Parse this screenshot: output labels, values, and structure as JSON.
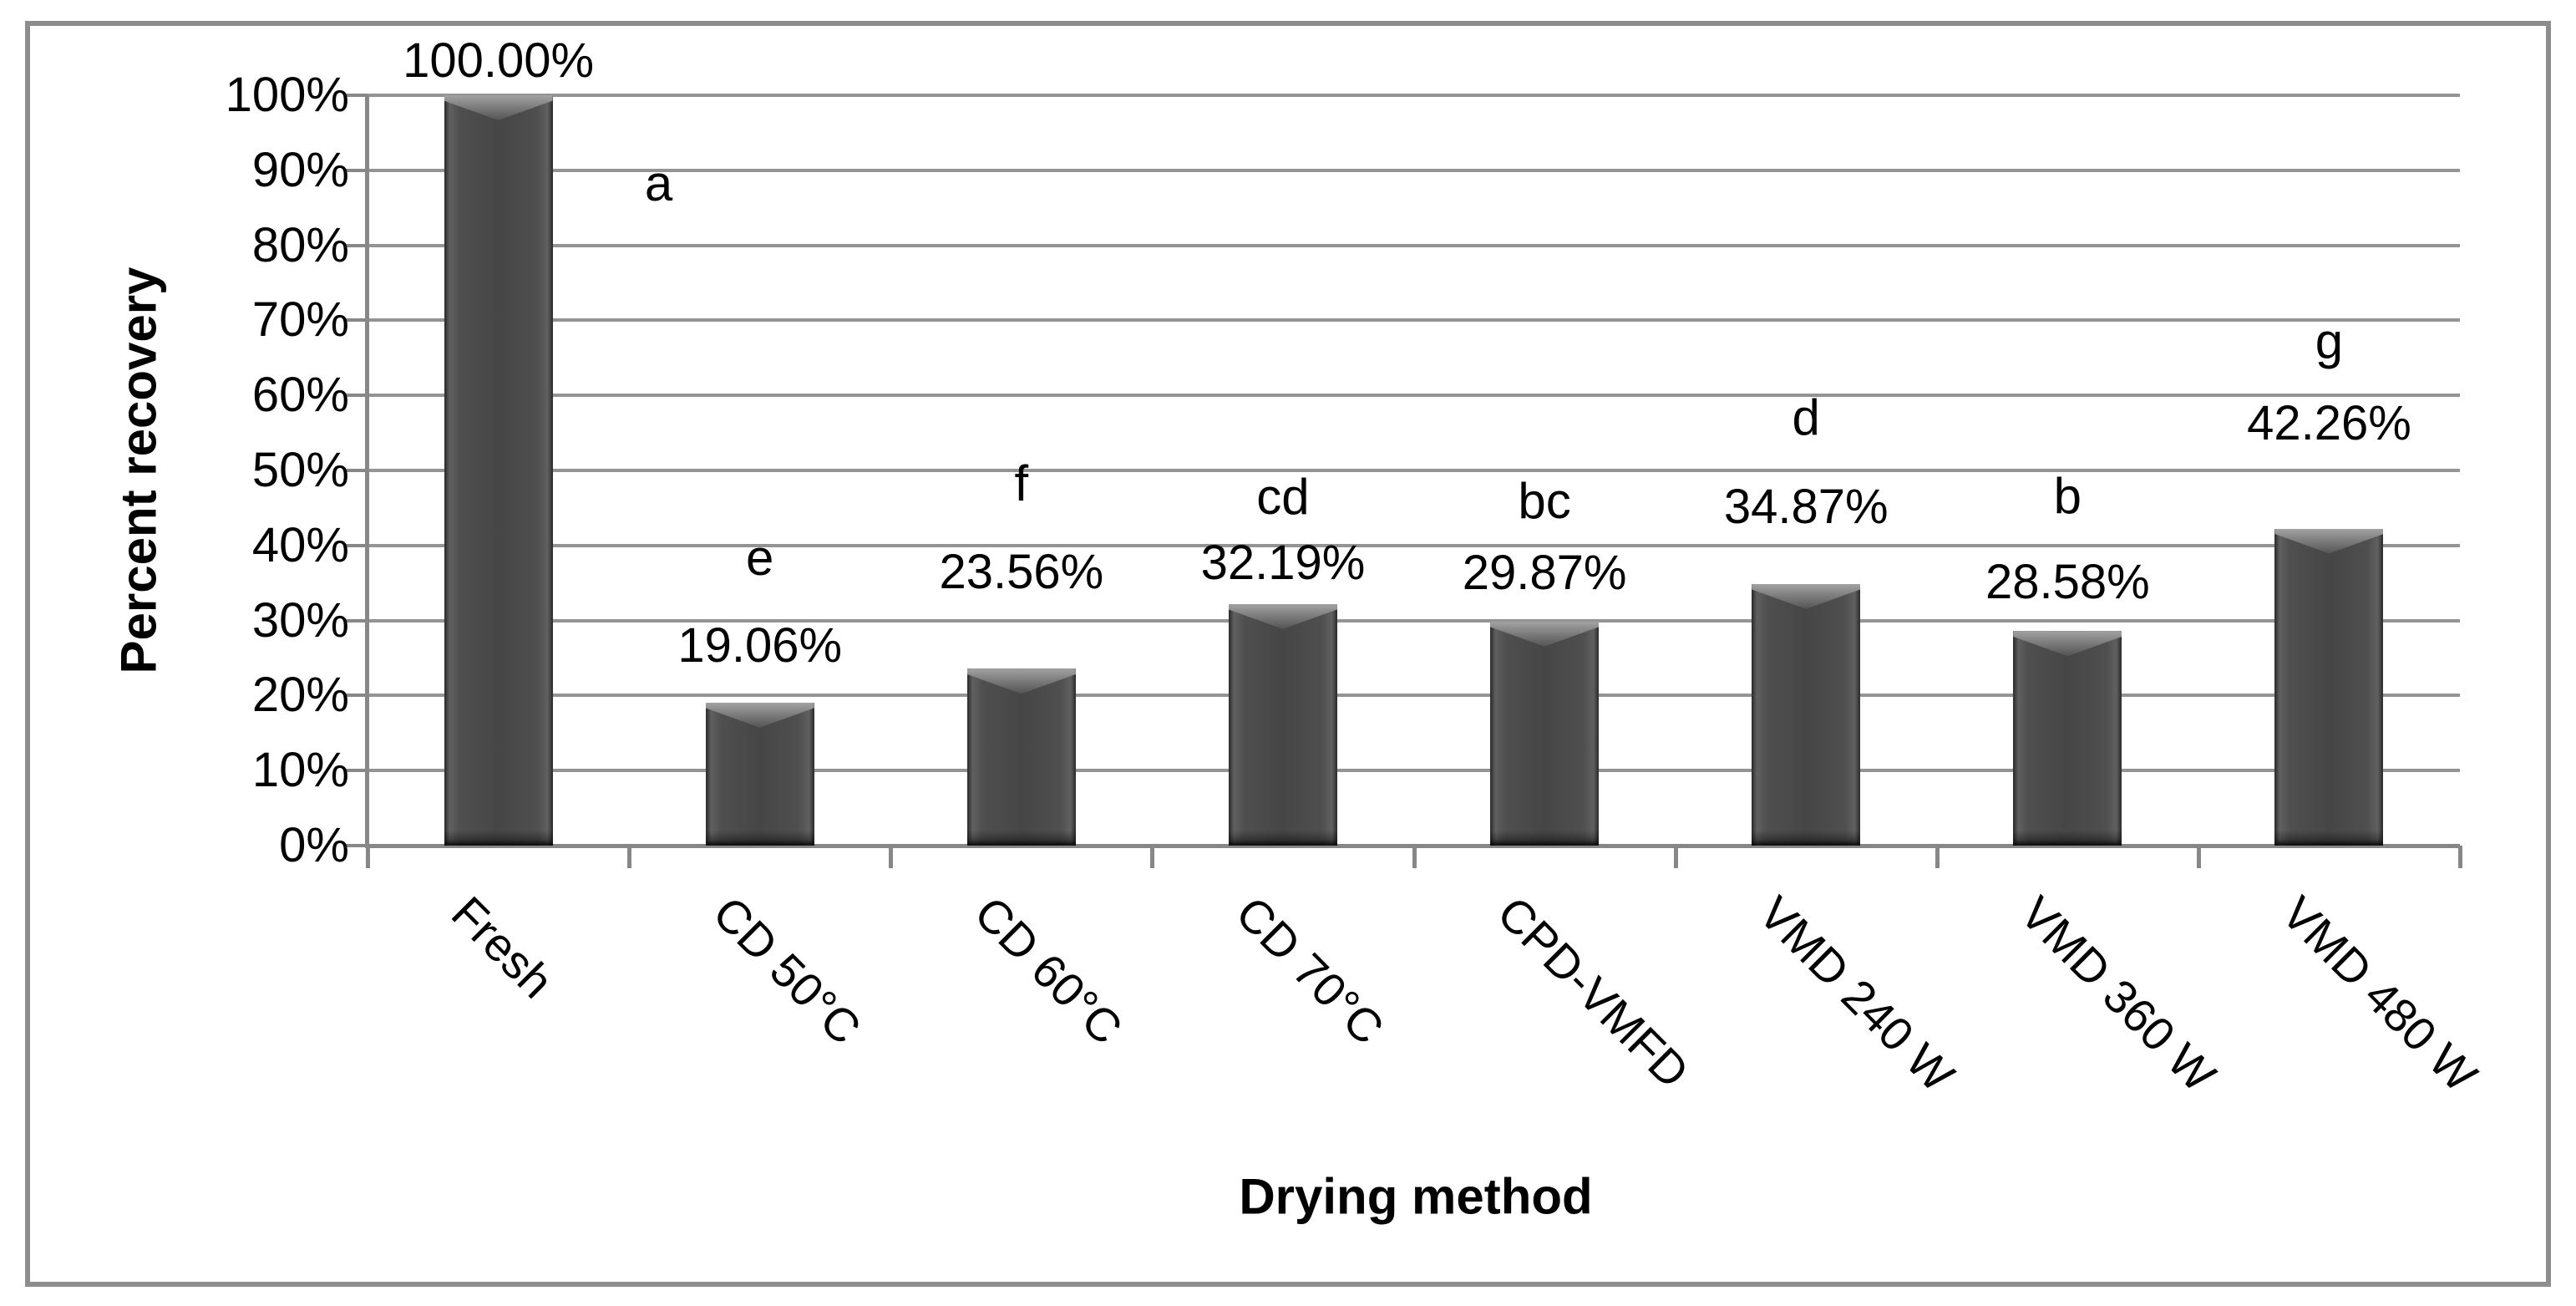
{
  "chart_data": {
    "type": "bar",
    "title": "",
    "xlabel": "Drying method",
    "ylabel": "Percent recovery",
    "ylim": [
      0,
      100
    ],
    "grid": true,
    "legend": false,
    "y_tick_labels": [
      "100%",
      "90%",
      "80%",
      "70%",
      "60%",
      "50%",
      "40%",
      "30%",
      "20%",
      "10%",
      "0%"
    ],
    "categories": [
      "Fresh",
      "CD 50°C",
      "CD 60°C",
      "CD 70°C",
      "CPD-VMFD",
      "VMD 240 W",
      "VMD 360 W",
      "VMD 480 W"
    ],
    "values": [
      100.0,
      19.06,
      23.56,
      32.19,
      29.87,
      34.87,
      28.58,
      42.26
    ],
    "points": [
      {
        "category": "Fresh",
        "value": 100.0,
        "value_label": "100.00%",
        "letter": "a",
        "value_gap": 10,
        "letter_gap": 0,
        "letter_dx": 192,
        "letter_abs_top": 188
      },
      {
        "category": "CD 50°C",
        "value": 19.06,
        "value_label": "19.06%",
        "letter": "e",
        "value_gap": 37,
        "letter_gap": 42,
        "letter_dx": 0
      },
      {
        "category": "CD 60°C",
        "value": 23.56,
        "value_label": "23.56%",
        "letter": "f",
        "value_gap": 84,
        "letter_gap": 43,
        "letter_dx": 0
      },
      {
        "category": "CD 70°C",
        "value": 32.19,
        "value_label": "32.19%",
        "letter": "cd",
        "value_gap": 18,
        "letter_gap": 16,
        "letter_dx": 0
      },
      {
        "category": "CPD-VMFD",
        "value": 29.87,
        "value_label": "29.87%",
        "letter": "bc",
        "value_gap": 27,
        "letter_gap": 23,
        "letter_dx": 0
      },
      {
        "category": "VMD 240 W",
        "value": 34.87,
        "value_label": "34.87%",
        "letter": "d",
        "value_gap": 61,
        "letter_gap": 44,
        "letter_dx": 0
      },
      {
        "category": "VMD 360 W",
        "value": 28.58,
        "value_label": "28.58%",
        "letter": "b",
        "value_gap": 27,
        "letter_gap": 40,
        "letter_dx": 0
      },
      {
        "category": "VMD 480 W",
        "value": 42.26,
        "value_label": "42.26%",
        "letter": "g",
        "value_gap": 95,
        "letter_gap": 35,
        "letter_dx": 0
      }
    ],
    "colors": {
      "bar": "#4a4a4a",
      "gridline": "#949494",
      "axis": "#878787",
      "frame": "#8d8d8d",
      "text": "#000000",
      "background": "#ffffff"
    }
  }
}
